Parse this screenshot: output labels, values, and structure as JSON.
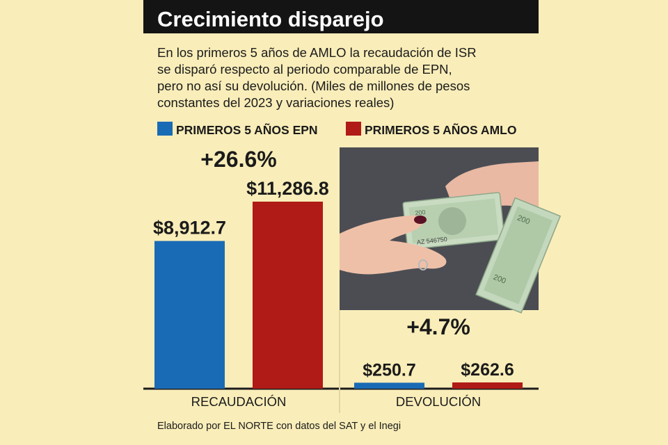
{
  "chart_data": {
    "type": "bar",
    "title": "Crecimiento disparejo",
    "subtitle": "En los primeros 5 años de AMLO la recaudación de ISR se disparó respecto al periodo comparable de EPN, pero no así su devolución. (Miles de millones de pesos constantes del 2023 y variaciones reales)",
    "subtitle_lines": [
      "En los primeros 5 años de AMLO la recaudación de ISR",
      "se disparó respecto al periodo comparable de EPN,",
      "pero no así su devolución. (Miles de millones de pesos",
      "constantes del 2023 y variaciones reales)"
    ],
    "categories": [
      "RECAUDACIÓN",
      "DEVOLUCIÓN"
    ],
    "series": [
      {
        "name": "PRIMEROS 5 AÑOS EPN",
        "color": "#1a6bb5",
        "values": [
          8912.7,
          250.7
        ],
        "labels": [
          "$8,912.7",
          "$250.7"
        ]
      },
      {
        "name": "PRIMEROS 5 AÑOS AMLO",
        "color": "#b01a17",
        "values": [
          11286.8,
          262.6
        ],
        "labels": [
          "$11,286.8",
          "$262.6"
        ]
      }
    ],
    "growth": [
      "+26.6%",
      "+4.7%"
    ],
    "legend_position": "top",
    "grid": false,
    "source": "Elaborado por EL NORTE con datos del SAT y el Inegi",
    "colors": {
      "background": "#f9edb9",
      "title_bar": "#141414",
      "title_text": "#ffffff",
      "text": "#1b1b1b",
      "baseline": "#1b1b1b"
    },
    "photo_icon": "hands-exchanging-peso-banknotes"
  }
}
